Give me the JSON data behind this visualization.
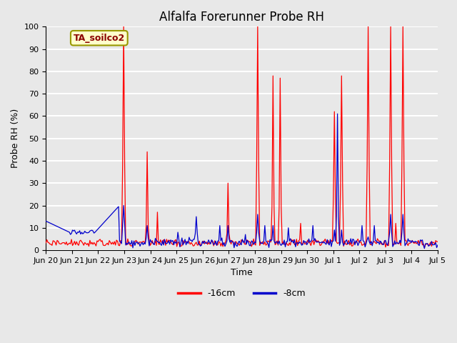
{
  "title": "Alfalfa Forerunner Probe RH",
  "ylabel": "Probe RH (%)",
  "xlabel": "Time",
  "ylim": [
    0,
    100
  ],
  "annotation": "TA_soilco2",
  "annotation_color": "#8B0000",
  "annotation_bg": "#FFFFCC",
  "annotation_border": "#999900",
  "line_red_label": "-16cm",
  "line_blue_label": "-8cm",
  "line_red_color": "#FF0000",
  "line_blue_color": "#0000CC",
  "bg_color": "#E8E8E8",
  "plot_bg_color": "#E8E8E8",
  "grid_color": "#FFFFFF",
  "tick_labels": [
    "Jun 20",
    "Jun 21",
    "Jun 22",
    "Jun 23",
    "Jun 24",
    "Jun 25",
    "Jun 26",
    "Jun 27",
    "Jun 28",
    "Jun 29",
    "Jun 30",
    "Jul 1",
    "Jul 2",
    "Jul 3",
    "Jul 4",
    "Jul 5"
  ],
  "yticks": [
    0,
    10,
    20,
    30,
    40,
    50,
    60,
    70,
    80,
    90,
    100
  ],
  "title_fontsize": 12
}
